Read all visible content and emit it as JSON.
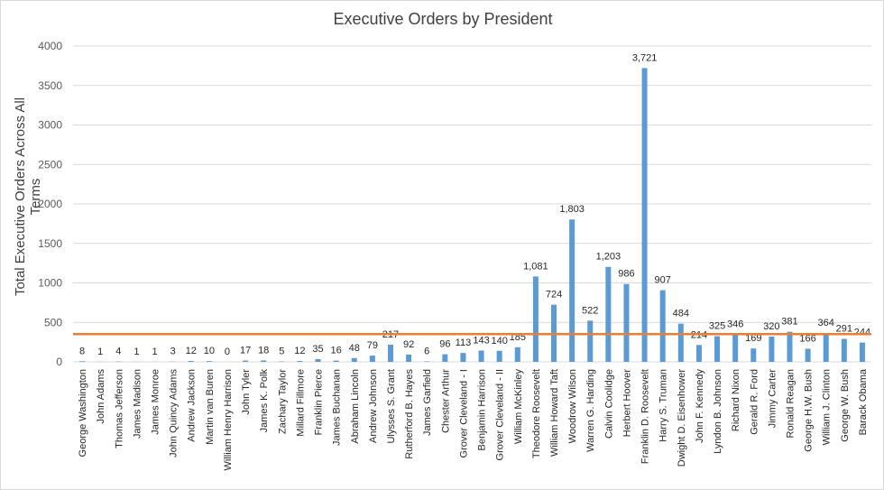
{
  "chart_data": {
    "type": "bar",
    "title": "Executive Orders by President",
    "xlabel": "",
    "ylabel": "Total Executive Orders Across All Terms",
    "ylim": [
      0,
      4000
    ],
    "yticks": [
      0,
      500,
      1000,
      1500,
      2000,
      2500,
      3000,
      3500,
      4000
    ],
    "grid": true,
    "bar_color": "#5b9bd5",
    "line_color": "#ed7d31",
    "reference_line_value": 352,
    "categories": [
      "George Washington",
      "John Adams",
      "Thomas Jefferson",
      "James Madison",
      "James Monroe",
      "John Quincy Adams",
      "Andrew Jackson",
      "Martin van Buren",
      "William Henry Harrison",
      "John Tyler",
      "James K. Polk",
      "Zachary Taylor",
      "Millard Fillmore",
      "Franklin Pierce",
      "James Buchanan",
      "Abraham Lincoln",
      "Andrew Johnson",
      "Ulysses S. Grant",
      "Rutherford B. Hayes",
      "James Garfield",
      "Chester Arthur",
      "Grover Cleveland - I",
      "Benjamin Harrison",
      "Grover Cleveland - II",
      "William McKinley",
      "Theodore Roosevelt",
      "William Howard Taft",
      "Woodrow Wilson",
      "Warren G. Harding",
      "Calvin Coolidge",
      "Herbert Hoover",
      "Franklin D. Roosevelt",
      "Harry S. Truman",
      "Dwight D. Eisenhower",
      "John F. Kennedy",
      "Lyndon B. Johnson",
      "Richard Nixon",
      "Gerald R. Ford",
      "Jimmy Carter",
      "Ronald Reagan",
      "George H.W. Bush",
      "William J. Clinton",
      "George W. Bush",
      "Barack Obama"
    ],
    "values": [
      8,
      1,
      4,
      1,
      1,
      3,
      12,
      10,
      0,
      17,
      18,
      5,
      12,
      35,
      16,
      48,
      79,
      217,
      92,
      6,
      96,
      113,
      143,
      140,
      185,
      1081,
      724,
      1803,
      522,
      1203,
      986,
      3721,
      907,
      484,
      214,
      325,
      346,
      169,
      320,
      381,
      166,
      364,
      291,
      244
    ],
    "data_labels": [
      "8",
      "1",
      "4",
      "1",
      "1",
      "3",
      "12",
      "10",
      "0",
      "17",
      "18",
      "5",
      "12",
      "35",
      "16",
      "48",
      "79",
      "217",
      "92",
      "6",
      "96",
      "113",
      "143",
      "140",
      "185",
      "1,081",
      "724",
      "1,803",
      "522",
      "1,203",
      "986",
      "3,721",
      "907",
      "484",
      "214",
      "325",
      "346",
      "169",
      "320",
      "381",
      "166",
      "364",
      "291",
      "244"
    ]
  }
}
